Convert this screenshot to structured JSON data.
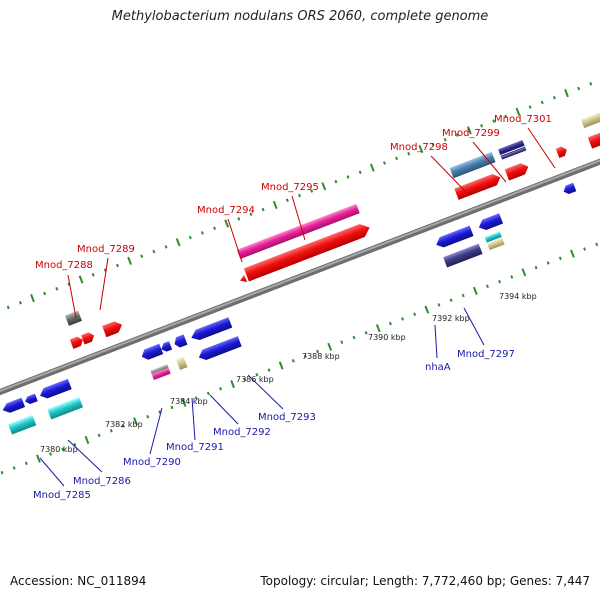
{
  "header": {
    "title": "Methylobacterium nodulans ORS 2060, complete genome"
  },
  "footer": {
    "accession": "Accession: NC_011894",
    "stats": "Topology: circular; Length: 7,772,460 bp; Genes: 7,447"
  },
  "colors": {
    "backbone": "#8c8c8c",
    "tick": "#2e8b2e",
    "label_top": "#cc0000",
    "label_bottom": "#1a1aa8",
    "red": "#ee1111",
    "blue": "#1a1ad6",
    "magenta": "#e8209a",
    "cyan": "#20c8c8",
    "steelblue": "#4a7fb0",
    "slate": "#3f3a86",
    "navy": "#232080",
    "khaki": "#cfc789",
    "gray": "#6b6b6b"
  },
  "scale": {
    "kbp_labels": [
      "7380 kbp",
      "7382 kbp",
      "7384 kbp",
      "7386 kbp",
      "7388 kbp",
      "7390 kbp",
      "7392 kbp",
      "7394 kbp"
    ]
  },
  "genes_top": [
    {
      "id": "Mnod_7288"
    },
    {
      "id": "Mnod_7289"
    },
    {
      "id": "Mnod_7294"
    },
    {
      "id": "Mnod_7295"
    },
    {
      "id": "Mnod_7298"
    },
    {
      "id": "Mnod_7299"
    },
    {
      "id": "Mnod_7301"
    }
  ],
  "genes_bottom": [
    {
      "id": "Mnod_7285"
    },
    {
      "id": "Mnod_7286"
    },
    {
      "id": "Mnod_7290"
    },
    {
      "id": "Mnod_7291"
    },
    {
      "id": "Mnod_7292"
    },
    {
      "id": "Mnod_7293"
    },
    {
      "id": "nhaA"
    },
    {
      "id": "Mnod_7297"
    }
  ]
}
